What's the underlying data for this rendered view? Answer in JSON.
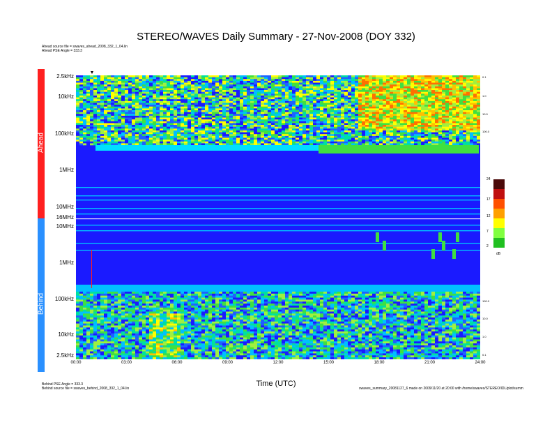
{
  "chart_data": {
    "type": "heatmap",
    "title": "STEREO/WAVES Daily Summary - 27-Nov-2008 (DOY 332)",
    "xlabel": "Time (UTC)",
    "x_ticks": [
      "00:00",
      "03:00",
      "06:00",
      "09:00",
      "12:00",
      "15:00",
      "18:00",
      "21:00",
      "24:00"
    ],
    "panels": [
      {
        "name": "Ahead",
        "y_ticks": [
          "2.5kHz",
          "10kHz",
          "100kHz",
          "1MHz",
          "10MHz",
          "16MHz"
        ],
        "right_ticks": [
          "0.1",
          "1.0",
          "10.0",
          "100.0"
        ],
        "header_lines": [
          "Ahead source file = swaves_ahead_2008_332_1_04.lin",
          "Ahead PSE Angle = 333.3"
        ]
      },
      {
        "name": "Behind",
        "y_ticks": [
          "10MHz",
          "1MHz",
          "100kHz",
          "10kHz",
          "2.5kHz"
        ],
        "right_ticks": [
          "100.0",
          "10.0",
          "1.0",
          "0.1"
        ],
        "footer_lines": [
          "Behind PSE Angle = 333.3",
          "Behind source file = swaves_behind_2008_332_1_04.lin"
        ]
      }
    ],
    "colorbar": {
      "ticks": [
        "24",
        "17",
        "12",
        "7",
        "2"
      ],
      "unit": "dB",
      "range": [
        2,
        24
      ]
    },
    "bottom_right_note": "swaves_summary_20081127_6 made on 2009/11/20 at 20:00 with /home/swaves/STEREO/IDL/plot/summ"
  },
  "colors": {
    "ahead": "#ff2020",
    "behind": "#2a90ff",
    "background_blue": "#1a1aff"
  }
}
